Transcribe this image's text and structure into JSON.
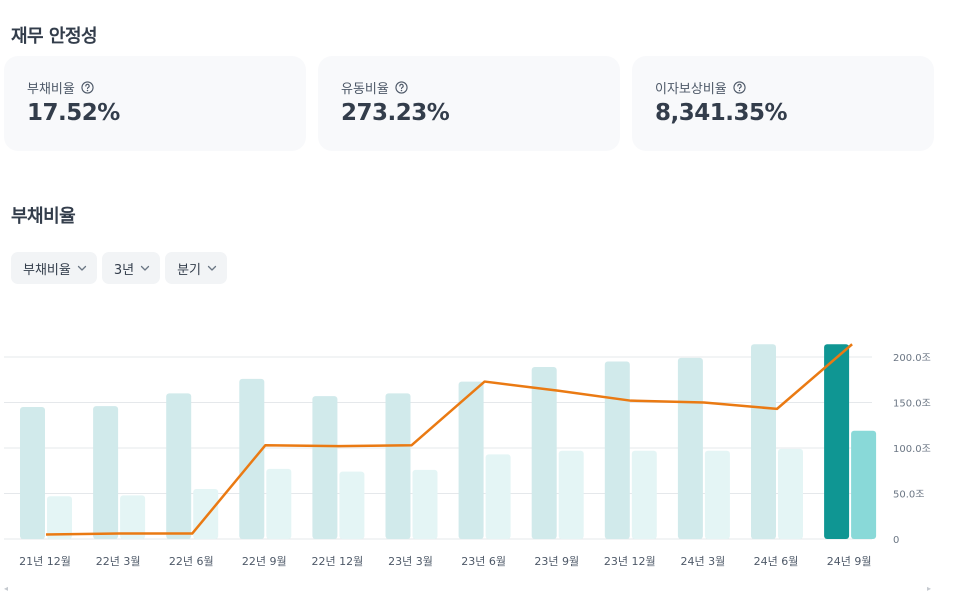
{
  "sections": {
    "stability_title": "재무 안정성",
    "debt_title": "부채비율"
  },
  "metrics": [
    {
      "label": "부채비율",
      "value": "17.52%"
    },
    {
      "label": "유동비율",
      "value": "273.23%"
    },
    {
      "label": "이자보상비율",
      "value": "8,341.35%"
    }
  ],
  "filters": {
    "metric": "부채비율",
    "period": "3년",
    "interval": "분기"
  },
  "icons": {
    "help": "question-circle-icon",
    "dropdown": "chevron-down-icon"
  },
  "colors": {
    "bar_primary": "#d1eaeb",
    "bar_secondary": "#e4f5f5",
    "bar_primary_highlight": "#0f9693",
    "bar_secondary_highlight": "#89d9d8",
    "line": "#ea7a13",
    "grid": "#e5e8eb"
  },
  "chart_data": {
    "type": "bar",
    "categories": [
      "21년 12월",
      "22년 3월",
      "22년 6월",
      "22년 9월",
      "22년 12월",
      "23년 3월",
      "23년 6월",
      "23년 9월",
      "23년 12월",
      "24년 3월",
      "24년 6월",
      "24년 9월"
    ],
    "series": [
      {
        "kind": "bar",
        "values": [
          145,
          146,
          160,
          176,
          157,
          160,
          173,
          189,
          195,
          199,
          214,
          214
        ]
      },
      {
        "kind": "bar",
        "values": [
          47,
          48,
          55,
          77,
          74,
          76,
          93,
          97,
          97,
          97,
          99,
          119
        ]
      },
      {
        "kind": "line",
        "values": [
          5,
          6,
          6,
          103,
          102,
          103,
          173,
          163,
          152,
          150,
          143,
          214
        ]
      }
    ],
    "y_ticks": [
      "0",
      "50.0조",
      "100.0조",
      "150.0조",
      "200.0조"
    ],
    "y_tick_values": [
      0,
      50,
      100,
      150,
      200
    ],
    "ylim": [
      0,
      220
    ],
    "grid": true,
    "highlight_index": 11,
    "y_axis_side": "right"
  }
}
